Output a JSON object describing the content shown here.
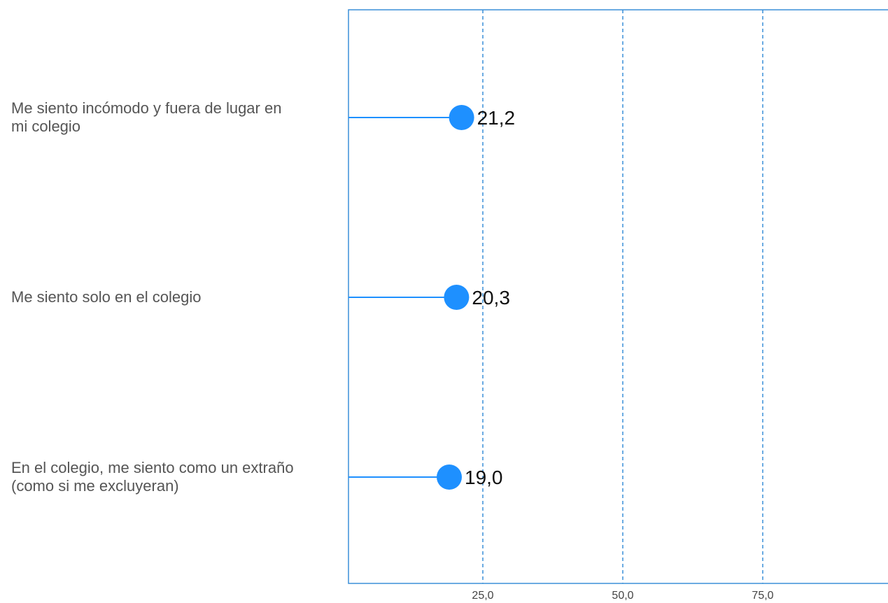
{
  "chart_data": {
    "type": "lollipop",
    "categories": [
      "Me siento incómodo y fuera de lugar en mi colegio",
      "Me siento solo en el colegio",
      "En el colegio, me siento como un extraño (como si me excluyeran)"
    ],
    "category_lines": [
      [
        "Me siento incómodo y fuera de lugar en",
        "mi colegio"
      ],
      [
        "Me siento solo en el colegio"
      ],
      [
        "En el colegio, me siento como un extraño",
        "(como si me excluyeran)"
      ]
    ],
    "values": [
      21.2,
      20.3,
      19.0
    ],
    "value_labels": [
      "21,2",
      "20,3",
      "19,0"
    ],
    "xlim": [
      0,
      100
    ],
    "xticks": [
      25,
      50,
      75
    ],
    "xtick_labels": [
      "25,0",
      "50,0",
      "75,0"
    ],
    "grid": true,
    "grid_style": "dashed vertical",
    "title": "",
    "xlabel": "",
    "ylabel": ""
  },
  "colors": {
    "accent": "#1e90ff",
    "axis": "#3a8fd8",
    "grid": "#3a8fd8",
    "label_text": "#555555",
    "value_text": "#111111"
  }
}
